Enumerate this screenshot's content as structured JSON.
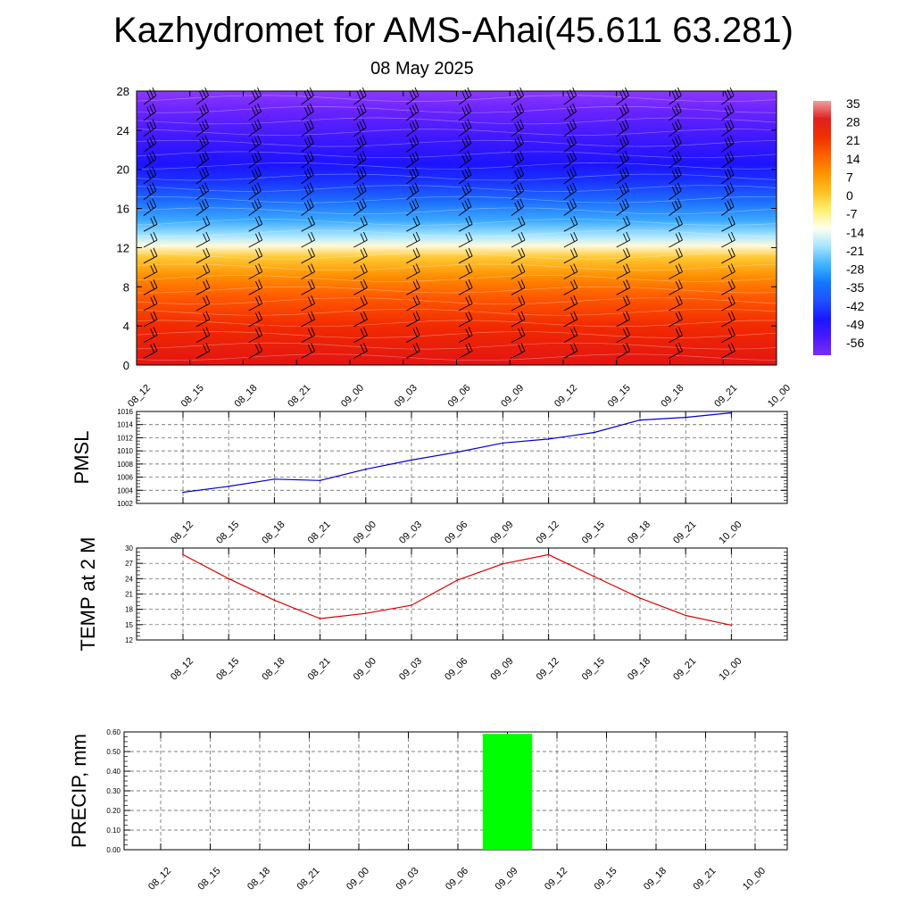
{
  "header": {
    "title": "Kazhydromet for AMS-Ahai(45.611 63.281)",
    "date": "08 May 2025"
  },
  "chart_data": [
    {
      "type": "heatmap",
      "name": "cross-section",
      "x": [
        "08_12",
        "08_15",
        "08_18",
        "08_21",
        "09_00",
        "09_03",
        "09_06",
        "09_09",
        "09_12",
        "09_15",
        "09_18",
        "09_21",
        "10_00"
      ],
      "ylim": [
        0,
        28
      ],
      "yticks": [
        "0",
        "4",
        "8",
        "12",
        "16",
        "20",
        "24",
        "28"
      ],
      "colorbar": {
        "labels": [
          "35",
          "28",
          "21",
          "14",
          "7",
          "0",
          "-7",
          "-14",
          "-21",
          "-28",
          "-35",
          "-42",
          "-49",
          "-56"
        ],
        "colors": [
          "#f0a0a0",
          "#e02020",
          "#f03000",
          "#ff6000",
          "#ff9400",
          "#ffc020",
          "#fff070",
          "#fffff0",
          "#a8e4ff",
          "#40b4ff",
          "#1078ff",
          "#2050ff",
          "#1818ff",
          "#4a18ff",
          "#7830f0"
        ]
      },
      "profile": [
        {
          "h": 0,
          "color": "#e21414"
        },
        {
          "h": 4,
          "color": "#f22a00"
        },
        {
          "h": 7,
          "color": "#ff5a00"
        },
        {
          "h": 9,
          "color": "#ff8c00"
        },
        {
          "h": 11,
          "color": "#ffc832"
        },
        {
          "h": 12.2,
          "color": "#fffadc"
        },
        {
          "h": 13.2,
          "color": "#a8e6ff"
        },
        {
          "h": 14.8,
          "color": "#3aa8ff"
        },
        {
          "h": 16.8,
          "color": "#1c6cff"
        },
        {
          "h": 18.8,
          "color": "#1a32ff"
        },
        {
          "h": 20.5,
          "color": "#1c14ff"
        },
        {
          "h": 23,
          "color": "#3c18ff"
        },
        {
          "h": 26,
          "color": "#6a24ff"
        },
        {
          "h": 28,
          "color": "#8a38ff"
        }
      ],
      "wind_barbs": true
    },
    {
      "type": "line",
      "ylabel": "PMSL",
      "x": [
        "08_12",
        "08_15",
        "08_18",
        "08_21",
        "09_00",
        "09_03",
        "09_06",
        "09_09",
        "09_12",
        "09_15",
        "09_18",
        "09_21",
        "10_00"
      ],
      "values": [
        1003.7,
        1004.6,
        1005.7,
        1005.5,
        1007.2,
        1008.6,
        1009.8,
        1011.2,
        1011.8,
        1012.8,
        1014.7,
        1015.1,
        1015.8
      ],
      "ylim": [
        1002,
        1016
      ],
      "yticks": [
        "1002",
        "1004",
        "1006",
        "1008",
        "1010",
        "1012",
        "1014",
        "1016"
      ],
      "color": "#0000cc",
      "grid": true
    },
    {
      "type": "line",
      "ylabel": "TEMP at 2 M",
      "x": [
        "08_12",
        "08_15",
        "08_18",
        "08_21",
        "09_00",
        "09_03",
        "09_06",
        "09_09",
        "09_12",
        "09_15",
        "09_18",
        "09_21",
        "10_00"
      ],
      "values": [
        28.7,
        24,
        19.8,
        16.2,
        17.2,
        18.8,
        23.7,
        26.9,
        28.7,
        24.4,
        20.2,
        16.8,
        14.9
      ],
      "ylim": [
        12,
        30
      ],
      "yticks": [
        "12",
        "15",
        "18",
        "21",
        "24",
        "27",
        "30"
      ],
      "color": "#e00000",
      "grid": true
    },
    {
      "type": "bar",
      "ylabel": "PRECIP, mm",
      "x": [
        "08_12",
        "08_15",
        "08_18",
        "08_21",
        "09_00",
        "09_03",
        "09_06",
        "09_09",
        "09_12",
        "09_15",
        "09_18",
        "09_21",
        "10_00"
      ],
      "values": [
        0,
        0,
        0,
        0,
        0,
        0,
        0,
        0.59,
        0,
        0,
        0,
        0,
        0
      ],
      "ylim": [
        0,
        0.6
      ],
      "yticks": [
        "0.00",
        "0.10",
        "0.20",
        "0.30",
        "0.40",
        "0.50",
        "0.60"
      ],
      "color": "#00ff00",
      "grid": true
    }
  ]
}
